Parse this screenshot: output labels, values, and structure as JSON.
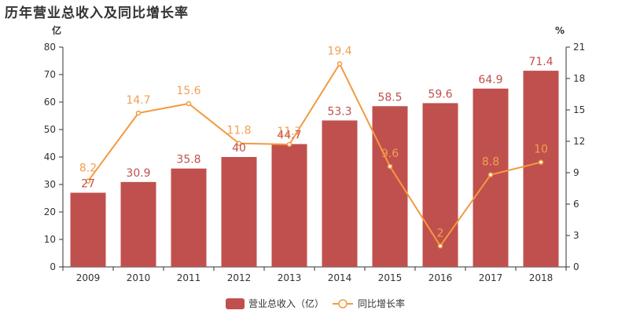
{
  "page_title": "历年营业总收入及同比增长率",
  "colors": {
    "bar": "#c0504d",
    "line": "#f39a3f",
    "axis": "#333333"
  },
  "chart_data": {
    "type": "bar",
    "categories": [
      "2009",
      "2010",
      "2011",
      "2012",
      "2013",
      "2014",
      "2015",
      "2016",
      "2017",
      "2018"
    ],
    "series": [
      {
        "name": "营业总收入（亿）",
        "type": "bar",
        "axis": "left",
        "values": [
          27,
          30.9,
          35.8,
          40,
          44.7,
          53.3,
          58.5,
          59.6,
          64.9,
          71.4
        ]
      },
      {
        "name": "同比增长率",
        "type": "line",
        "axis": "right",
        "values": [
          8.2,
          14.7,
          15.6,
          11.8,
          11.7,
          19.4,
          9.6,
          2,
          8.8,
          10
        ]
      }
    ],
    "title": "历年营业总收入及同比增长率",
    "y_left": {
      "unit": "亿",
      "range": [
        0,
        80
      ],
      "ticks": [
        0,
        10,
        20,
        30,
        40,
        50,
        60,
        70,
        80
      ]
    },
    "y_right": {
      "unit": "%",
      "range": [
        0,
        21
      ],
      "ticks": [
        0,
        3,
        6,
        9,
        12,
        15,
        18,
        21
      ]
    },
    "legend": "bottom-center",
    "grid": false
  }
}
